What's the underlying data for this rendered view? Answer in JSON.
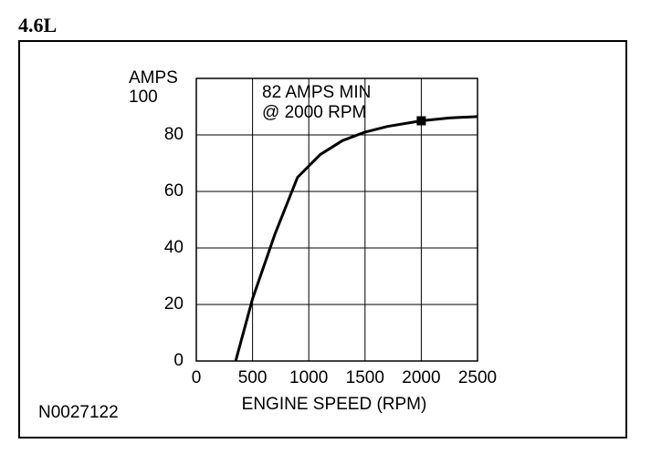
{
  "chart_data": {
    "type": "line",
    "title": "4.6L",
    "figure_id": "N0027122",
    "y_label": "AMPS",
    "x_label": "ENGINE SPEED (RPM)",
    "annotation": [
      "82 AMPS MIN",
      "@ 2000 RPM"
    ],
    "xlim": [
      0,
      2500
    ],
    "xticks": [
      0,
      500,
      1000,
      1500,
      2000,
      2500
    ],
    "ylim": [
      0,
      100
    ],
    "yticks": [
      0,
      20,
      40,
      60,
      80,
      100
    ],
    "grid": true,
    "series": [
      {
        "color": "#000000",
        "x": [
          350,
          500,
          700,
          900,
          1100,
          1300,
          1500,
          1700,
          2000,
          2250,
          2500
        ],
        "values": [
          0,
          22,
          45,
          65,
          73,
          78,
          81,
          83,
          85,
          86,
          86.5
        ]
      }
    ],
    "markers": [
      {
        "x": 2000,
        "y": 85
      }
    ]
  }
}
